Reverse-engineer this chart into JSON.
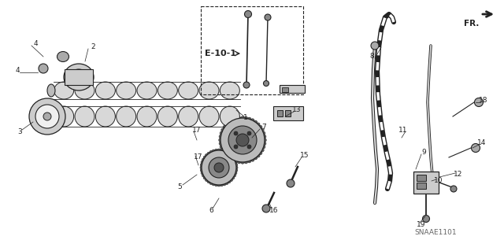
{
  "bg_color": "#ffffff",
  "watermark": "SNAAE1101",
  "fr_label": "FR.",
  "ref_label": "E-10-1",
  "line_color": "#222222",
  "part_labels": [
    [
      "1",
      312,
      150
    ],
    [
      "2",
      118,
      60
    ],
    [
      "3",
      25,
      168
    ],
    [
      "4",
      45,
      55
    ],
    [
      "4",
      22,
      90
    ],
    [
      "5",
      228,
      238
    ],
    [
      "6",
      268,
      268
    ],
    [
      "7",
      335,
      162
    ],
    [
      "8",
      472,
      72
    ],
    [
      "9",
      538,
      193
    ],
    [
      "10",
      557,
      230
    ],
    [
      "11",
      512,
      165
    ],
    [
      "12",
      582,
      222
    ],
    [
      "13",
      377,
      140
    ],
    [
      "14",
      612,
      182
    ],
    [
      "15",
      387,
      198
    ],
    [
      "16",
      348,
      268
    ],
    [
      "17",
      252,
      200
    ],
    [
      "17",
      250,
      165
    ],
    [
      "18",
      614,
      128
    ],
    [
      "19",
      535,
      286
    ]
  ]
}
